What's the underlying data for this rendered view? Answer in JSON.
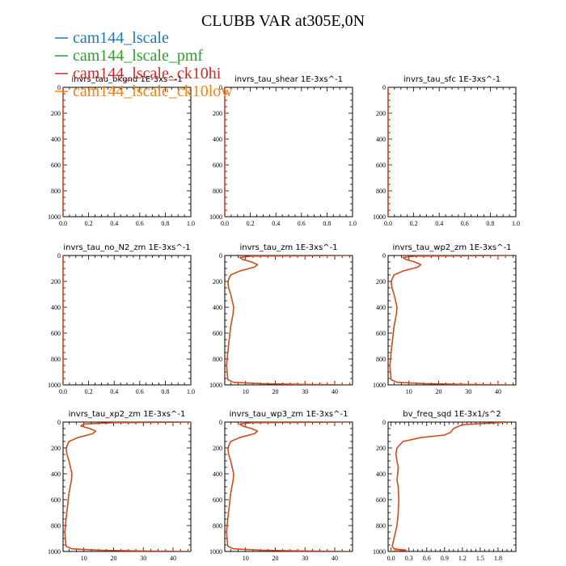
{
  "figure": {
    "title": "CLUBB VAR at305E,0N"
  },
  "legend": [
    {
      "name": "cam144_lscale",
      "color": "#1f77b4"
    },
    {
      "name": "cam144_lscale_pmf",
      "color": "#2ca02c"
    },
    {
      "name": "cam144_lscale_ck10hi",
      "color": "#d62728"
    },
    {
      "name": "cam144_lscale_ck10low",
      "color": "#ff7f0e"
    }
  ],
  "chart_data": [
    {
      "type": "line",
      "title": "invrs_tau_bkgnd   1E-3xs^-1",
      "xlim": [
        0,
        1
      ],
      "ylim": [
        1000,
        0
      ],
      "xticks": [
        0,
        0.2,
        0.4,
        0.6,
        0.8,
        1.0
      ],
      "xtick_labels": [
        "0.0",
        "0.2",
        "0.4",
        "0.6",
        "0.8",
        "1.0"
      ],
      "yticks": [
        0,
        200,
        400,
        600,
        800,
        1000
      ],
      "series": [
        {
          "x": [
            0,
            0
          ],
          "y": [
            0,
            1000
          ]
        }
      ]
    },
    {
      "type": "line",
      "title": "invrs_tau_shear   1E-3xs^-1",
      "xlim": [
        0,
        1
      ],
      "ylim": [
        1000,
        0
      ],
      "xticks": [
        0,
        0.2,
        0.4,
        0.6,
        0.8,
        1.0
      ],
      "xtick_labels": [
        "0.0",
        "0.2",
        "0.4",
        "0.6",
        "0.8",
        "1.0"
      ],
      "yticks": [
        0,
        200,
        400,
        600,
        800,
        1000
      ],
      "series": [
        {
          "x": [
            0,
            0
          ],
          "y": [
            0,
            1000
          ]
        }
      ]
    },
    {
      "type": "line",
      "title": "invrs_tau_sfc   1E-3xs^-1",
      "xlim": [
        0,
        1
      ],
      "ylim": [
        1000,
        0
      ],
      "xticks": [
        0,
        0.2,
        0.4,
        0.6,
        0.8,
        1.0
      ],
      "xtick_labels": [
        "0.0",
        "0.2",
        "0.4",
        "0.6",
        "0.8",
        "1.0"
      ],
      "yticks": [
        0,
        200,
        400,
        600,
        800,
        1000
      ],
      "series": [
        {
          "x": [
            0,
            0
          ],
          "y": [
            0,
            1000
          ]
        }
      ]
    },
    {
      "type": "line",
      "title": "invrs_tau_no_N2_zm   1E-3xs^-1",
      "xlim": [
        0,
        1
      ],
      "ylim": [
        1000,
        0
      ],
      "xticks": [
        0,
        0.2,
        0.4,
        0.6,
        0.8,
        1.0
      ],
      "xtick_labels": [
        "0.0",
        "0.2",
        "0.4",
        "0.6",
        "0.8",
        "1.0"
      ],
      "yticks": [
        0,
        200,
        400,
        600,
        800,
        1000
      ],
      "series": [
        {
          "x": [
            0,
            0
          ],
          "y": [
            0,
            1000
          ]
        }
      ]
    },
    {
      "type": "line",
      "title": "invrs_tau_zm   1E-3xs^-1",
      "xlim": [
        3,
        46
      ],
      "ylim": [
        1000,
        0
      ],
      "xticks": [
        10,
        20,
        30,
        40
      ],
      "xtick_labels": [
        "10",
        "20",
        "30",
        "40"
      ],
      "yticks": [
        0,
        200,
        400,
        600,
        800,
        1000
      ],
      "series": [
        {
          "x": [
            45,
            12,
            8,
            9,
            12,
            14,
            13,
            8,
            5,
            4,
            4.3,
            5,
            5.5,
            6,
            5.8,
            5,
            4.5,
            4,
            3.6,
            4,
            6,
            15,
            30,
            45
          ],
          "y": [
            0,
            5,
            15,
            30,
            50,
            70,
            90,
            120,
            150,
            200,
            250,
            300,
            350,
            400,
            450,
            550,
            650,
            750,
            850,
            960,
            980,
            990,
            996,
            1000
          ]
        }
      ]
    },
    {
      "type": "line",
      "title": "invrs_tau_wp2_zm   1E-3xs^-1",
      "xlim": [
        3,
        46
      ],
      "ylim": [
        1000,
        0
      ],
      "xticks": [
        10,
        20,
        30,
        40
      ],
      "xtick_labels": [
        "10",
        "20",
        "30",
        "40"
      ],
      "yticks": [
        0,
        200,
        400,
        600,
        800,
        1000
      ],
      "series": [
        {
          "x": [
            45,
            12,
            8,
            9,
            12,
            14,
            13,
            8,
            5,
            4,
            4.3,
            5,
            5.5,
            6,
            5.8,
            5,
            4.5,
            4,
            3.6,
            4,
            6,
            15,
            30,
            45
          ],
          "y": [
            0,
            5,
            15,
            30,
            50,
            70,
            90,
            120,
            150,
            200,
            250,
            300,
            350,
            400,
            450,
            550,
            650,
            750,
            850,
            960,
            980,
            990,
            996,
            1000
          ]
        }
      ]
    },
    {
      "type": "line",
      "title": "invrs_tau_xp2_zm   1E-3xs^-1",
      "xlim": [
        3,
        46
      ],
      "ylim": [
        1000,
        0
      ],
      "xticks": [
        10,
        20,
        30,
        40
      ],
      "xtick_labels": [
        "10",
        "20",
        "30",
        "40"
      ],
      "yticks": [
        0,
        200,
        400,
        600,
        800,
        1000
      ],
      "series": [
        {
          "x": [
            46,
            20,
            10,
            9,
            12,
            14,
            13,
            8,
            5,
            4,
            4.3,
            5,
            5.5,
            6,
            5.8,
            5,
            4.5,
            4,
            3.6,
            4,
            6,
            15,
            30,
            46
          ],
          "y": [
            0,
            5,
            15,
            30,
            50,
            70,
            90,
            120,
            150,
            200,
            250,
            300,
            350,
            400,
            450,
            550,
            650,
            750,
            850,
            960,
            980,
            990,
            996,
            1000
          ]
        }
      ]
    },
    {
      "type": "line",
      "title": "invrs_tau_wp3_zm   1E-3xs^-1",
      "xlim": [
        3,
        46
      ],
      "ylim": [
        1000,
        0
      ],
      "xticks": [
        10,
        20,
        30,
        40
      ],
      "xtick_labels": [
        "10",
        "20",
        "30",
        "40"
      ],
      "yticks": [
        0,
        200,
        400,
        600,
        800,
        1000
      ],
      "series": [
        {
          "x": [
            45,
            12,
            8,
            9,
            12,
            14,
            13,
            8,
            5,
            4,
            4.3,
            5,
            5.5,
            6,
            5.8,
            5,
            4.5,
            4,
            3.6,
            4,
            6,
            15,
            30,
            45
          ],
          "y": [
            0,
            5,
            15,
            30,
            50,
            70,
            90,
            120,
            150,
            200,
            250,
            300,
            350,
            400,
            450,
            550,
            650,
            750,
            850,
            960,
            980,
            990,
            996,
            1000
          ]
        }
      ]
    },
    {
      "type": "line",
      "title": "bv_freq_sqd   1E-3x1/s^2",
      "xlim": [
        -0.05,
        2.1
      ],
      "ylim": [
        1000,
        0
      ],
      "xticks": [
        0,
        0.3,
        0.6,
        0.9,
        1.2,
        1.5,
        1.8
      ],
      "xtick_labels": [
        "0.0",
        "0.3",
        "0.6",
        "0.9",
        "1.2",
        "1.5",
        "1.8"
      ],
      "yticks": [
        0,
        200,
        400,
        600,
        800,
        1000
      ],
      "series": [
        {
          "x": [
            2.0,
            1.2,
            1.05,
            1.0,
            0.9,
            0.5,
            0.2,
            0.1,
            0.08,
            0.1,
            0.12,
            0.11,
            0.1,
            0.12,
            0.13,
            0.12,
            0.1,
            0.05,
            0.02,
            0.05,
            0.25,
            0.0
          ],
          "y": [
            0,
            20,
            50,
            80,
            100,
            120,
            150,
            200,
            250,
            300,
            350,
            400,
            450,
            500,
            600,
            700,
            800,
            900,
            960,
            980,
            990,
            1000
          ]
        }
      ]
    }
  ]
}
